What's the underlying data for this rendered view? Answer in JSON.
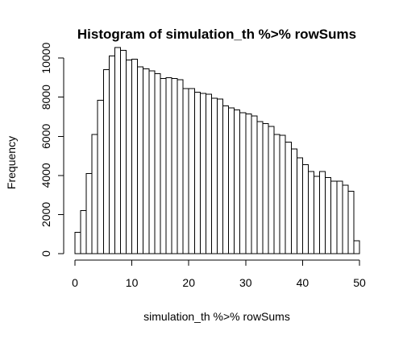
{
  "chart_data": {
    "type": "bar",
    "title": "Histogram of simulation_th %>% rowSums",
    "xlabel": "simulation_th %>% rowSums",
    "ylabel": "Frequency",
    "bin_width": 1,
    "x_range": [
      0,
      50
    ],
    "xlim": [
      0,
      50
    ],
    "ylim": [
      0,
      10500
    ],
    "x_ticks": [
      0,
      10,
      20,
      30,
      40,
      50
    ],
    "y_ticks": [
      0,
      2000,
      4000,
      6000,
      8000,
      10000
    ],
    "x_tick_labels": [
      "0",
      "10",
      "20",
      "30",
      "40",
      "50"
    ],
    "y_tick_labels": [
      "0",
      "2000",
      "4000",
      "6000",
      "8000",
      "10000"
    ],
    "grid": false,
    "legend": "none",
    "bin_starts": [
      0,
      1,
      2,
      3,
      4,
      5,
      6,
      7,
      8,
      9,
      10,
      11,
      12,
      13,
      14,
      15,
      16,
      17,
      18,
      19,
      20,
      21,
      22,
      23,
      24,
      25,
      26,
      27,
      28,
      29,
      30,
      31,
      32,
      33,
      34,
      35,
      36,
      37,
      38,
      39,
      40,
      41,
      42,
      43,
      44,
      45,
      46,
      47,
      48,
      49
    ],
    "values": [
      1100,
      2200,
      4100,
      6100,
      7850,
      9400,
      10100,
      10550,
      10400,
      9900,
      9950,
      9550,
      9450,
      9350,
      9200,
      8950,
      9000,
      8950,
      8900,
      8450,
      8450,
      8250,
      8200,
      8150,
      7950,
      7900,
      7550,
      7450,
      7350,
      7200,
      7150,
      7050,
      6750,
      6650,
      6500,
      6100,
      6050,
      5700,
      5350,
      4900,
      4550,
      4200,
      3950,
      4200,
      3900,
      3700,
      3700,
      3500,
      3200,
      650
    ]
  }
}
